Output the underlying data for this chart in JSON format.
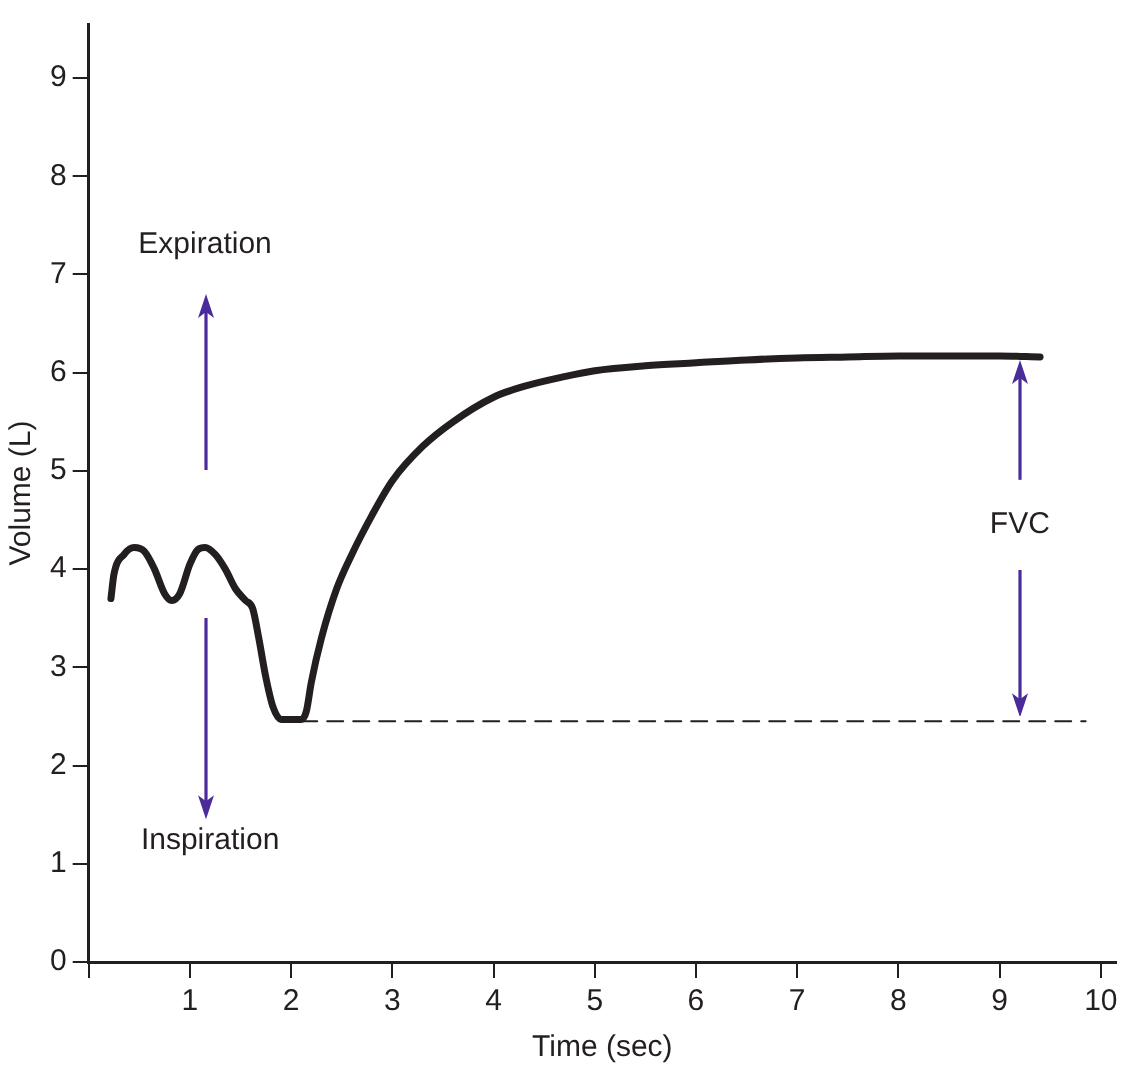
{
  "chart_data": {
    "type": "line",
    "xlabel": "Time (sec)",
    "ylabel": "Volume (L)",
    "xlim": [
      0,
      10.15
    ],
    "xticks": [
      {
        "value": 0,
        "label": null
      },
      1,
      2,
      3,
      4,
      5,
      6,
      7,
      8,
      9,
      10
    ],
    "ylim": [
      0,
      9.55
    ],
    "yticks": [
      0,
      1,
      2,
      3,
      4,
      5,
      6,
      7,
      8,
      9
    ],
    "grid": false,
    "legend": false,
    "marker": "none",
    "series": [
      {
        "color": "#231f20",
        "line_style": "solid",
        "x": [
          0.22,
          0.25,
          0.35,
          0.45,
          0.55,
          0.65,
          0.75,
          0.82,
          0.9,
          1.0,
          1.08,
          1.15,
          1.25,
          1.35,
          1.45,
          1.55,
          1.62,
          1.68,
          1.75,
          1.82,
          1.9,
          2.0,
          2.1,
          2.15,
          2.2,
          2.3,
          2.45,
          2.6,
          2.8,
          3.0,
          3.3,
          3.6,
          4.0,
          4.3,
          4.7,
          5.0,
          5.5,
          6.0,
          6.5,
          7.0,
          7.5,
          8.0,
          8.5,
          9.0,
          9.4
        ],
        "values": [
          3.7,
          3.95,
          4.15,
          4.22,
          4.18,
          4.0,
          3.75,
          3.68,
          3.75,
          4.05,
          4.2,
          4.22,
          4.15,
          4.0,
          3.8,
          3.68,
          3.6,
          3.3,
          2.9,
          2.6,
          2.47,
          2.47,
          2.47,
          2.55,
          2.85,
          3.3,
          3.8,
          4.15,
          4.55,
          4.9,
          5.25,
          5.5,
          5.75,
          5.86,
          5.96,
          6.02,
          6.07,
          6.1,
          6.13,
          6.15,
          6.16,
          6.17,
          6.17,
          6.17,
          6.16
        ]
      },
      {
        "color": "#231f20",
        "line_style": "dashed",
        "x": [
          2.1,
          9.85
        ],
        "values": [
          2.45,
          2.45
        ]
      }
    ],
    "annotations": [
      "Expiration",
      "Inspiration",
      "FVC"
    ]
  }
}
